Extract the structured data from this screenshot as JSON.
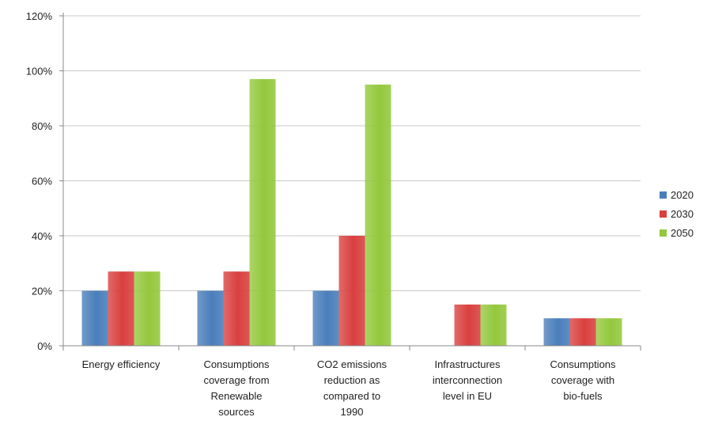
{
  "chart_data": {
    "type": "bar",
    "title": "",
    "xlabel": "",
    "ylabel": "",
    "ylim": [
      0,
      120
    ],
    "y_ticks": [
      "0%",
      "20%",
      "40%",
      "60%",
      "80%",
      "100%",
      "120%"
    ],
    "y_tick_values": [
      0,
      20,
      40,
      60,
      80,
      100,
      120
    ],
    "grid": true,
    "legend_position": "right",
    "categories": [
      [
        "Energy efficiency"
      ],
      [
        "Consumptions",
        "coverage from",
        "Renewable",
        "sources"
      ],
      [
        "CO2 emissions",
        "reduction as",
        "compared to",
        "1990"
      ],
      [
        "Infrastructures",
        "interconnection",
        "level in EU"
      ],
      [
        "Consumptions",
        "coverage with",
        "bio-fuels"
      ]
    ],
    "series": [
      {
        "name": "2020",
        "color": "#4a7ebb",
        "values": [
          20,
          20,
          20,
          0,
          10
        ]
      },
      {
        "name": "2030",
        "color": "#d9403f",
        "values": [
          27,
          27,
          40,
          15,
          10
        ]
      },
      {
        "name": "2050",
        "color": "#94c83d",
        "values": [
          27,
          97,
          95,
          15,
          10
        ]
      }
    ]
  }
}
